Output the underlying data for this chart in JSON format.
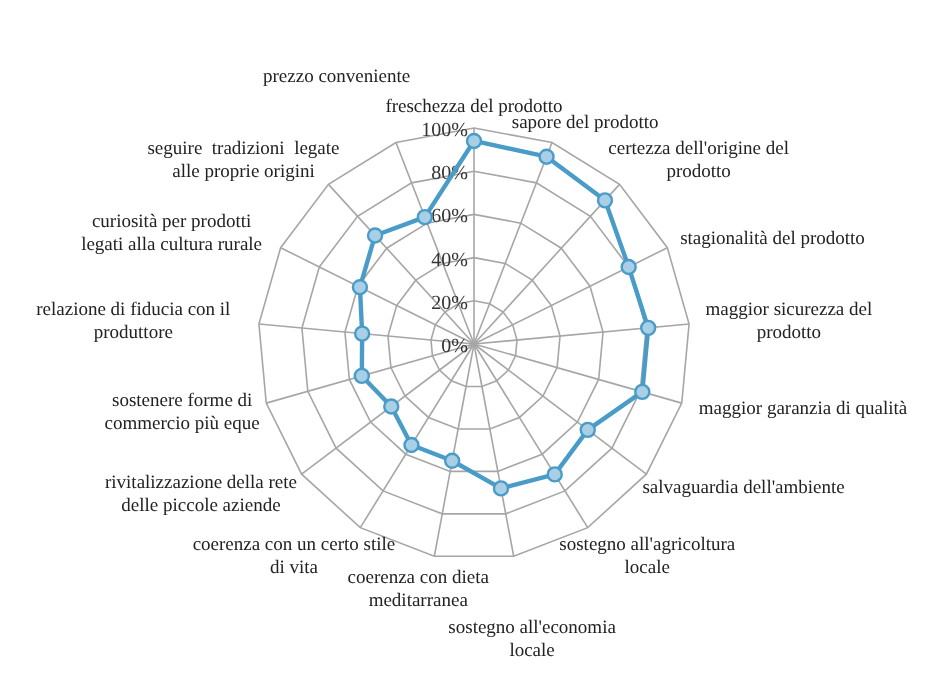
{
  "chart_data": {
    "type": "radar",
    "categories": [
      "freschezza del prodotto",
      "sapore del prodotto",
      "certezza dell'origine del prodotto",
      "stagionalità del prodotto",
      "maggior sicurezza del prodotto",
      "maggior garanzia di qualità",
      "salvaguardia dell'ambiente",
      "sostegno all'agricoltura locale",
      "sostegno all'economia locale",
      "coerenza con dieta meditarranea",
      "coerenza con un certo stile di vita",
      "rivitalizzazione della rete delle piccole aziende",
      "sostenere forme di commercio più eque",
      "relazione di fiducia con il produttore",
      "curiosità per prodotti legati alla cultura rurale",
      "seguire  tradizioni  legate alle proprie origini",
      "prezzo conveniente"
    ],
    "series": [
      {
        "color": "#4a9cc8",
        "values": [
          94,
          93,
          90,
          80,
          81,
          81,
          66,
          71,
          68,
          55,
          55,
          48,
          54,
          52,
          59,
          68,
          63
        ]
      }
    ],
    "ylim": [
      0,
      100
    ],
    "yticks": [
      {
        "value": 0,
        "label": "0%"
      },
      {
        "value": 20,
        "label": "20%"
      },
      {
        "value": 40,
        "label": "40%"
      },
      {
        "value": 60,
        "label": "60%"
      },
      {
        "value": 80,
        "label": "80%"
      },
      {
        "value": 100,
        "label": "100%"
      }
    ],
    "grid": true,
    "marker": "circle",
    "line_style": "solid"
  }
}
